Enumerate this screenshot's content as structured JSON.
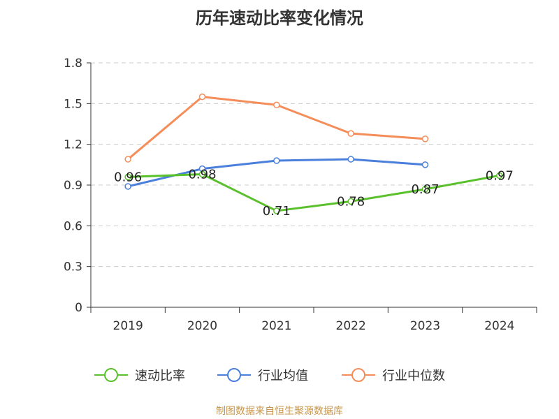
{
  "title": "历年速动比率变化情况",
  "source": "制图数据来自恒生聚源数据库",
  "chart_data": {
    "type": "line",
    "title": "历年速动比率变化情况",
    "categories": [
      "2019",
      "2020",
      "2021",
      "2022",
      "2023",
      "2024"
    ],
    "ylim": [
      0,
      1.8
    ],
    "yticks": [
      0,
      0.3,
      0.6,
      0.9,
      1.2,
      1.5,
      1.8
    ],
    "ytick_labels": [
      "0",
      "0.3",
      "0.6",
      "0.9",
      "1.2",
      "1.5",
      "1.8"
    ],
    "grid": true,
    "legend_position": "bottom",
    "series": [
      {
        "name": "速动比率",
        "color": "#5ac02c",
        "values": [
          0.96,
          0.98,
          0.71,
          0.78,
          0.87,
          0.97
        ],
        "data_labels": [
          "0.96",
          "0.98",
          "0.71",
          "0.78",
          "0.87",
          "0.97"
        ]
      },
      {
        "name": "行业均值",
        "color": "#4a7fdc",
        "values": [
          0.89,
          1.02,
          1.08,
          1.09,
          1.05,
          null
        ]
      },
      {
        "name": "行业中位数",
        "color": "#f58d5a",
        "values": [
          1.09,
          1.55,
          1.49,
          1.28,
          1.24,
          null
        ]
      }
    ]
  }
}
